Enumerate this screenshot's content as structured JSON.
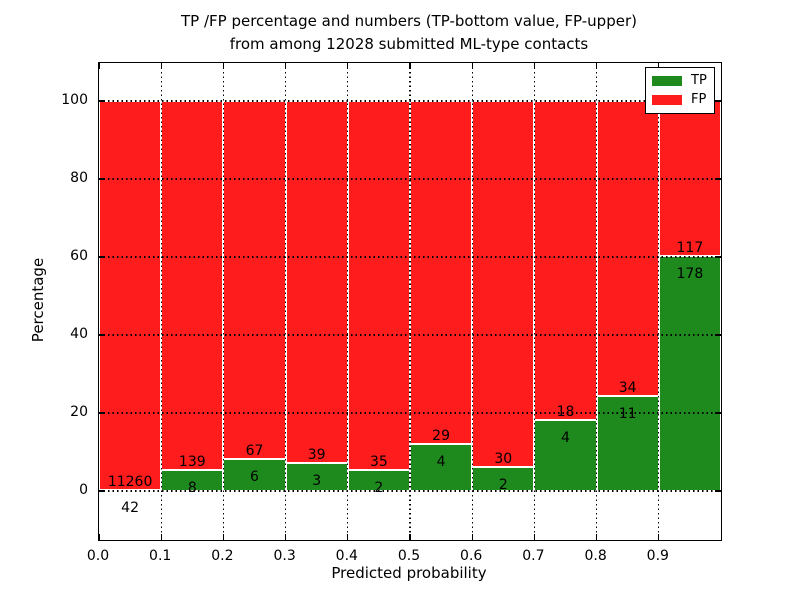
{
  "figure": {
    "title_line1": "TP /FP percentage and numbers (TP-bottom value, FP-upper)",
    "title_line2": "from among 12028 submitted ML-type contacts"
  },
  "chart_data": {
    "type": "bar",
    "stacked": true,
    "normalized_to_percent": true,
    "title": "TP /FP percentage and numbers (TP-bottom value, FP-upper) from among 12028 submitted ML-type contacts",
    "total_submitted": 12028,
    "xlabel": "Predicted probability",
    "ylabel": "Percentage",
    "xlim": [
      0.0,
      1.0
    ],
    "ylim": [
      -13,
      110
    ],
    "grid": "dotted",
    "legend_position": "upper right",
    "bin_edges": [
      0.0,
      0.1,
      0.2,
      0.3,
      0.4,
      0.5,
      0.6,
      0.7,
      0.8,
      0.9,
      1.0
    ],
    "xticks": [
      0.0,
      0.1,
      0.2,
      0.3,
      0.4,
      0.5,
      0.6,
      0.7,
      0.8,
      0.9
    ],
    "xtick_labels": [
      "0.0",
      "0.1",
      "0.2",
      "0.3",
      "0.4",
      "0.5",
      "0.6",
      "0.7",
      "0.8",
      "0.9"
    ],
    "yticks": [
      0,
      20,
      40,
      60,
      80,
      100
    ],
    "ytick_labels": [
      "0",
      "20",
      "40",
      "60",
      "80",
      "100"
    ],
    "series": [
      {
        "name": "TP",
        "color": "#1e8a1e",
        "counts": [
          42,
          8,
          6,
          3,
          2,
          4,
          2,
          4,
          11,
          178
        ]
      },
      {
        "name": "FP",
        "color": "#ff1c1c",
        "counts": [
          11260,
          139,
          67,
          39,
          35,
          29,
          30,
          18,
          34,
          117
        ]
      }
    ],
    "tp_percent": [
      0.37,
      5.44,
      8.22,
      7.14,
      5.41,
      12.12,
      6.25,
      18.18,
      24.44,
      60.34
    ],
    "bar_edge_color": "#ffffff",
    "grid_color": "#000000"
  }
}
